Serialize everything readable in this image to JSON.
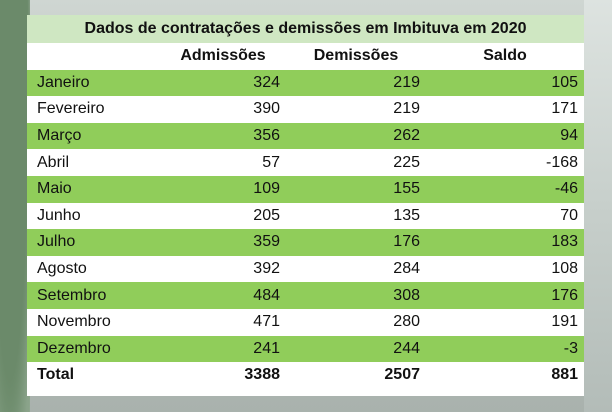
{
  "chart_data": {
    "type": "table",
    "title": "Dados de contratações e demissões em Imbituva em 2020",
    "columns": [
      "",
      "Admissões",
      "Demissões",
      "Saldo"
    ],
    "rows": [
      {
        "label": "Janeiro",
        "values": [
          "324",
          "219",
          "105"
        ]
      },
      {
        "label": "Fevereiro",
        "values": [
          "390",
          "219",
          "171"
        ]
      },
      {
        "label": "Março",
        "values": [
          "356",
          "262",
          "94"
        ]
      },
      {
        "label": "Abril",
        "values": [
          "57",
          "225",
          "-168"
        ]
      },
      {
        "label": "Maio",
        "values": [
          "109",
          "155",
          "-46"
        ]
      },
      {
        "label": "Junho",
        "values": [
          "205",
          "135",
          "70"
        ]
      },
      {
        "label": "Julho",
        "values": [
          "359",
          "176",
          "183"
        ]
      },
      {
        "label": "Agosto",
        "values": [
          "392",
          "284",
          "108"
        ]
      },
      {
        "label": "Setembro",
        "values": [
          "484",
          "308",
          "176"
        ]
      },
      {
        "label": "Novembro",
        "values": [
          "471",
          "280",
          "191"
        ]
      },
      {
        "label": "Dezembro",
        "values": [
          "241",
          "244",
          "-3"
        ]
      }
    ],
    "total": {
      "label": "Total",
      "values": [
        "3388",
        "2507",
        "881"
      ]
    },
    "colors": {
      "green_row": "#90cd5a",
      "title_bg": "#cfe7c2",
      "white_row": "#ffffff"
    }
  }
}
